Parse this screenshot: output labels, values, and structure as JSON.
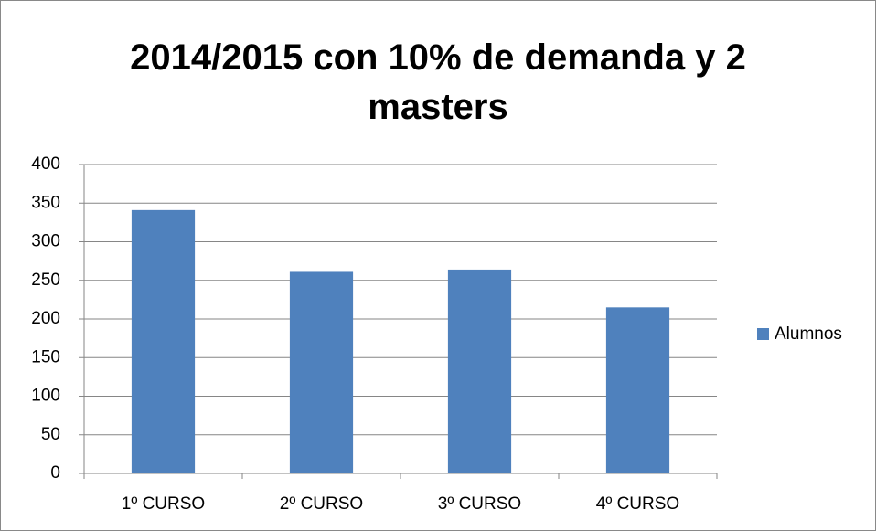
{
  "chart_data": {
    "type": "bar",
    "title": "2014/2015 con 10% de demanda y 2 masters",
    "categories": [
      "1º CURSO",
      "2º CURSO",
      "3º CURSO",
      "4º CURSO"
    ],
    "series": [
      {
        "name": "Alumnos",
        "color": "#4f81bd",
        "values": [
          341,
          261,
          264,
          215
        ]
      }
    ],
    "ylim": [
      0,
      400
    ],
    "yticks": [
      0,
      50,
      100,
      150,
      200,
      250,
      300,
      350,
      400
    ],
    "grid": true,
    "legend": "right"
  }
}
